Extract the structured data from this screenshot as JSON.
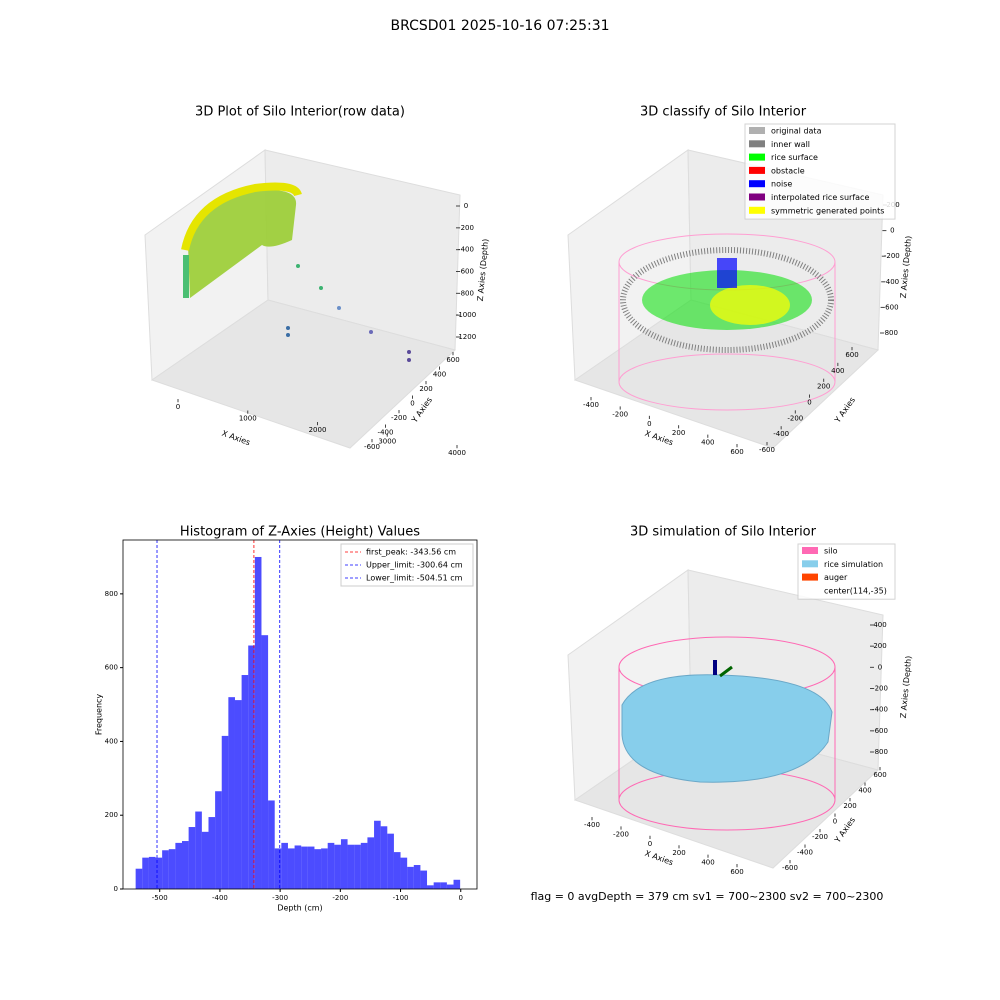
{
  "title": "BRCSD01 2025-10-16 07:25:31",
  "chart_data": [
    {
      "type": "scatter3d",
      "title": "3D Plot of Silo Interior(row data)",
      "xlabel": "X Axies",
      "ylabel": "Y Axies",
      "zlabel": "Z Axies (Depth)",
      "xticks": [
        0,
        1000,
        2000,
        3000,
        4000
      ],
      "yticks": [
        -600,
        -400,
        -200,
        0,
        200,
        400,
        600
      ],
      "zticks": [
        0,
        -200,
        -400,
        -600,
        -800,
        -1000,
        -1200
      ]
    },
    {
      "type": "scatter3d",
      "title": "3D classify of Silo Interior",
      "xlabel": "X Axies",
      "ylabel": "Y Axies",
      "zlabel": "Z Axies (Depth)",
      "xticks": [
        -400,
        -200,
        0,
        200,
        400,
        600
      ],
      "yticks": [
        -600,
        -400,
        -200,
        0,
        200,
        400,
        600
      ],
      "zticks": [
        200,
        0,
        -200,
        -400,
        -600,
        -800
      ],
      "legend": [
        {
          "name": "original data",
          "color": "#b0b0b0"
        },
        {
          "name": "inner wall",
          "color": "#808080"
        },
        {
          "name": "rice surface",
          "color": "#00ff00"
        },
        {
          "name": "obstacle",
          "color": "#ff0000"
        },
        {
          "name": "noise",
          "color": "#0000ff"
        },
        {
          "name": "interpolated rice surface",
          "color": "#800080"
        },
        {
          "name": "symmetric generated points",
          "color": "#ffff00"
        }
      ]
    },
    {
      "type": "histogram",
      "title": "Histogram of Z-Axies (Height) Values",
      "xlabel": "Depth (cm)",
      "ylabel": "Frequency",
      "color": "#0000ff",
      "bins": [
        -540,
        -529,
        -518,
        -507,
        -496,
        -485,
        -474,
        -463,
        -452,
        -441,
        -430,
        -419,
        -408,
        -397,
        -386,
        -375,
        -364,
        -353,
        -342,
        -331,
        -320,
        -309,
        -298,
        -287,
        -276,
        -265,
        -254,
        -243,
        -232,
        -221,
        -210,
        -199,
        -188,
        -177,
        -166,
        -155,
        -144,
        -133,
        -122,
        -111,
        -100,
        -89,
        -78,
        -67,
        -56,
        -45,
        -34,
        -23,
        -12,
        -1
      ],
      "counts": [
        55,
        85,
        87,
        85,
        105,
        108,
        125,
        130,
        168,
        210,
        155,
        195,
        265,
        415,
        520,
        512,
        580,
        660,
        900,
        688,
        240,
        110,
        125,
        110,
        118,
        115,
        115,
        108,
        110,
        125,
        120,
        135,
        120,
        120,
        125,
        140,
        185,
        170,
        150,
        100,
        85,
        60,
        65,
        50,
        10,
        18,
        18,
        12,
        25
      ],
      "xlim": [
        -561,
        27
      ],
      "ylim": [
        0,
        946
      ],
      "xticks": [
        -500,
        -400,
        -300,
        -200,
        -100,
        0
      ],
      "yticks": [
        0,
        200,
        400,
        600,
        800
      ],
      "legend_corner": "upper right",
      "lines": [
        {
          "name": "first_peak: -343.56 cm",
          "value": -343.56,
          "color": "#ff0000"
        },
        {
          "name": "Upper_limit: -300.64 cm",
          "value": -300.64,
          "color": "#0000ff"
        },
        {
          "name": "Lower_limit: -504.51 cm",
          "value": -504.51,
          "color": "#0000ff"
        }
      ]
    },
    {
      "type": "surface3d",
      "title": "3D simulation of Silo Interior",
      "xlabel": "X Axies",
      "ylabel": "Y Axies",
      "zlabel": "Z Axies (Depth)",
      "xticks": [
        -400,
        -200,
        0,
        200,
        400,
        600
      ],
      "yticks": [
        -600,
        -400,
        -200,
        0,
        200,
        400,
        600
      ],
      "zticks": [
        400,
        200,
        0,
        -200,
        -400,
        -600,
        -800
      ],
      "legend": [
        {
          "name": "silo",
          "color": "#ff69b4"
        },
        {
          "name": "rice simulation",
          "color": "#87ceeb"
        },
        {
          "name": "auger",
          "color": "#ff4500"
        },
        {
          "name": "center(114,-35)"
        }
      ],
      "annotation": "flag = 0     avgDepth = 379 cm  sv1 = 700~2300  sv2 = 700~2300"
    }
  ]
}
